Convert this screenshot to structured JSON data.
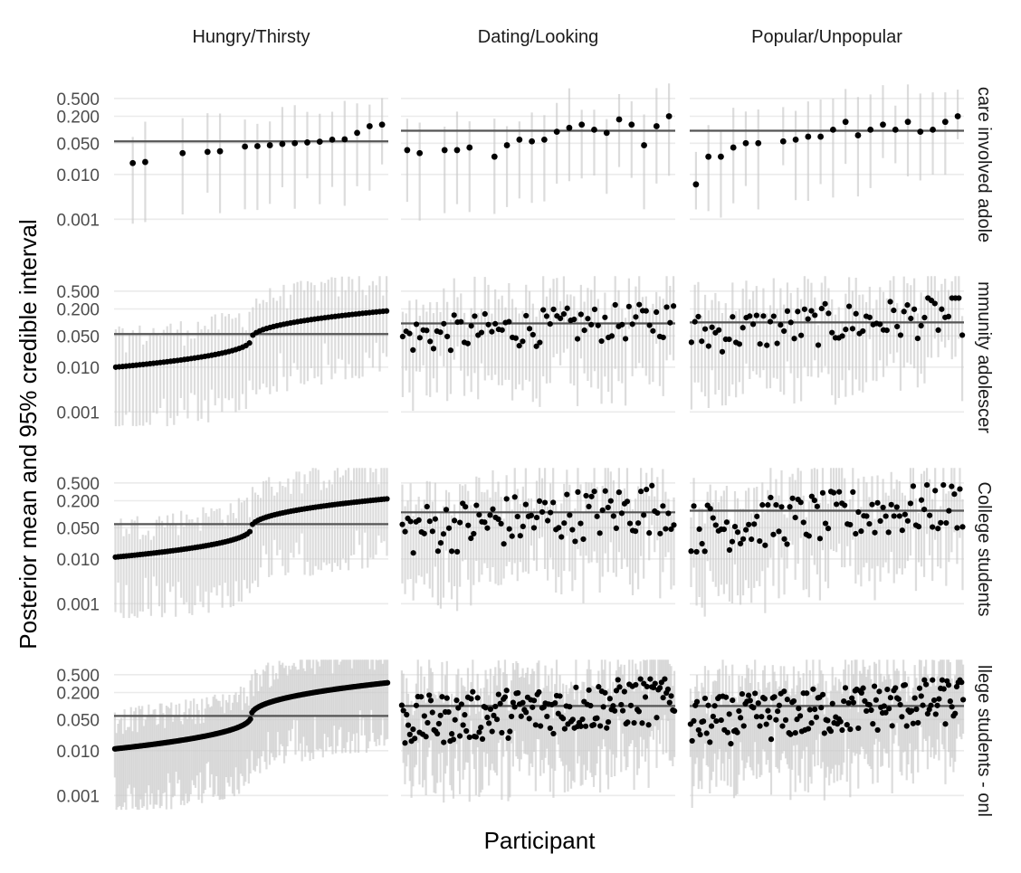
{
  "chart_data": {
    "type": "scatter",
    "description_style": "faceted point-range plot",
    "ylabel": "Posterior mean and 95% credible interval",
    "xlabel": "Participant",
    "y_scale": "log10",
    "ylim": [
      0.0004,
      1.2
    ],
    "y_ticks": [
      0.001,
      0.01,
      0.05,
      0.2,
      0.5
    ],
    "y_tick_labels": [
      "0.001",
      "0.010",
      "0.050",
      "0.200",
      "0.500"
    ],
    "columns": [
      "Hungry/Thirsty",
      "Dating/Looking",
      "Popular/Unpopular"
    ],
    "rows": [
      "care involved adole",
      "mmunity adolescer",
      "College students",
      "llege students - onl"
    ],
    "row_counts": [
      22,
      80,
      100,
      170
    ],
    "panels": [
      {
        "row": 0,
        "col": 0,
        "reference": 0.055,
        "points": [
          {
            "idx": 1,
            "mean": 0.018
          },
          {
            "idx": 2,
            "mean": 0.019
          },
          {
            "idx": 5,
            "mean": 0.03
          },
          {
            "idx": 7,
            "mean": 0.032
          },
          {
            "idx": 8,
            "mean": 0.033
          },
          {
            "idx": 10,
            "mean": 0.042
          },
          {
            "idx": 11,
            "mean": 0.043
          },
          {
            "idx": 12,
            "mean": 0.045
          },
          {
            "idx": 13,
            "mean": 0.048
          },
          {
            "idx": 14,
            "mean": 0.05
          },
          {
            "idx": 15,
            "mean": 0.052
          },
          {
            "idx": 16,
            "mean": 0.054
          },
          {
            "idx": 17,
            "mean": 0.06
          },
          {
            "idx": 18,
            "mean": 0.061
          },
          {
            "idx": 19,
            "mean": 0.085
          },
          {
            "idx": 20,
            "mean": 0.12
          },
          {
            "idx": 21,
            "mean": 0.13
          }
        ]
      },
      {
        "row": 0,
        "col": 1,
        "reference": 0.095,
        "points": [
          {
            "idx": 0,
            "mean": 0.035
          },
          {
            "idx": 1,
            "mean": 0.03
          },
          {
            "idx": 3,
            "mean": 0.035
          },
          {
            "idx": 4,
            "mean": 0.035
          },
          {
            "idx": 5,
            "mean": 0.04
          },
          {
            "idx": 7,
            "mean": 0.025
          },
          {
            "idx": 8,
            "mean": 0.045
          },
          {
            "idx": 9,
            "mean": 0.06
          },
          {
            "idx": 10,
            "mean": 0.055
          },
          {
            "idx": 11,
            "mean": 0.06
          },
          {
            "idx": 12,
            "mean": 0.09
          },
          {
            "idx": 13,
            "mean": 0.11
          },
          {
            "idx": 14,
            "mean": 0.13
          },
          {
            "idx": 15,
            "mean": 0.1
          },
          {
            "idx": 16,
            "mean": 0.085
          },
          {
            "idx": 17,
            "mean": 0.17
          },
          {
            "idx": 18,
            "mean": 0.13
          },
          {
            "idx": 19,
            "mean": 0.045
          },
          {
            "idx": 20,
            "mean": 0.12
          },
          {
            "idx": 21,
            "mean": 0.2
          }
        ]
      },
      {
        "row": 0,
        "col": 2,
        "reference": 0.095,
        "points": [
          {
            "idx": 0,
            "mean": 0.006
          },
          {
            "idx": 1,
            "mean": 0.025
          },
          {
            "idx": 2,
            "mean": 0.025
          },
          {
            "idx": 3,
            "mean": 0.04
          },
          {
            "idx": 4,
            "mean": 0.05
          },
          {
            "idx": 5,
            "mean": 0.05
          },
          {
            "idx": 7,
            "mean": 0.055
          },
          {
            "idx": 8,
            "mean": 0.06
          },
          {
            "idx": 9,
            "mean": 0.07
          },
          {
            "idx": 10,
            "mean": 0.07
          },
          {
            "idx": 11,
            "mean": 0.1
          },
          {
            "idx": 12,
            "mean": 0.15
          },
          {
            "idx": 13,
            "mean": 0.075
          },
          {
            "idx": 14,
            "mean": 0.1
          },
          {
            "idx": 15,
            "mean": 0.13
          },
          {
            "idx": 16,
            "mean": 0.1
          },
          {
            "idx": 17,
            "mean": 0.15
          },
          {
            "idx": 18,
            "mean": 0.09
          },
          {
            "idx": 19,
            "mean": 0.1
          },
          {
            "idx": 20,
            "mean": 0.15
          },
          {
            "idx": 21,
            "mean": 0.2
          }
        ]
      },
      {
        "row": 1,
        "col": 0,
        "reference": 0.055,
        "trend": [
          0.01,
          0.18
        ]
      },
      {
        "row": 1,
        "col": 1,
        "reference": 0.095,
        "scatter_range": [
          0.02,
          0.25
        ]
      },
      {
        "row": 1,
        "col": 2,
        "reference": 0.1,
        "scatter_range": [
          0.02,
          0.35
        ]
      },
      {
        "row": 2,
        "col": 0,
        "reference": 0.06,
        "trend": [
          0.011,
          0.22
        ]
      },
      {
        "row": 2,
        "col": 1,
        "reference": 0.11,
        "scatter_range": [
          0.012,
          0.45
        ]
      },
      {
        "row": 2,
        "col": 2,
        "reference": 0.12,
        "scatter_range": [
          0.014,
          0.45
        ]
      },
      {
        "row": 3,
        "col": 0,
        "reference": 0.06,
        "trend": [
          0.011,
          0.33
        ]
      },
      {
        "row": 3,
        "col": 1,
        "reference": 0.1,
        "scatter_range": [
          0.013,
          0.4
        ]
      },
      {
        "row": 3,
        "col": 2,
        "reference": 0.1,
        "scatter_range": [
          0.013,
          0.38
        ]
      }
    ]
  }
}
